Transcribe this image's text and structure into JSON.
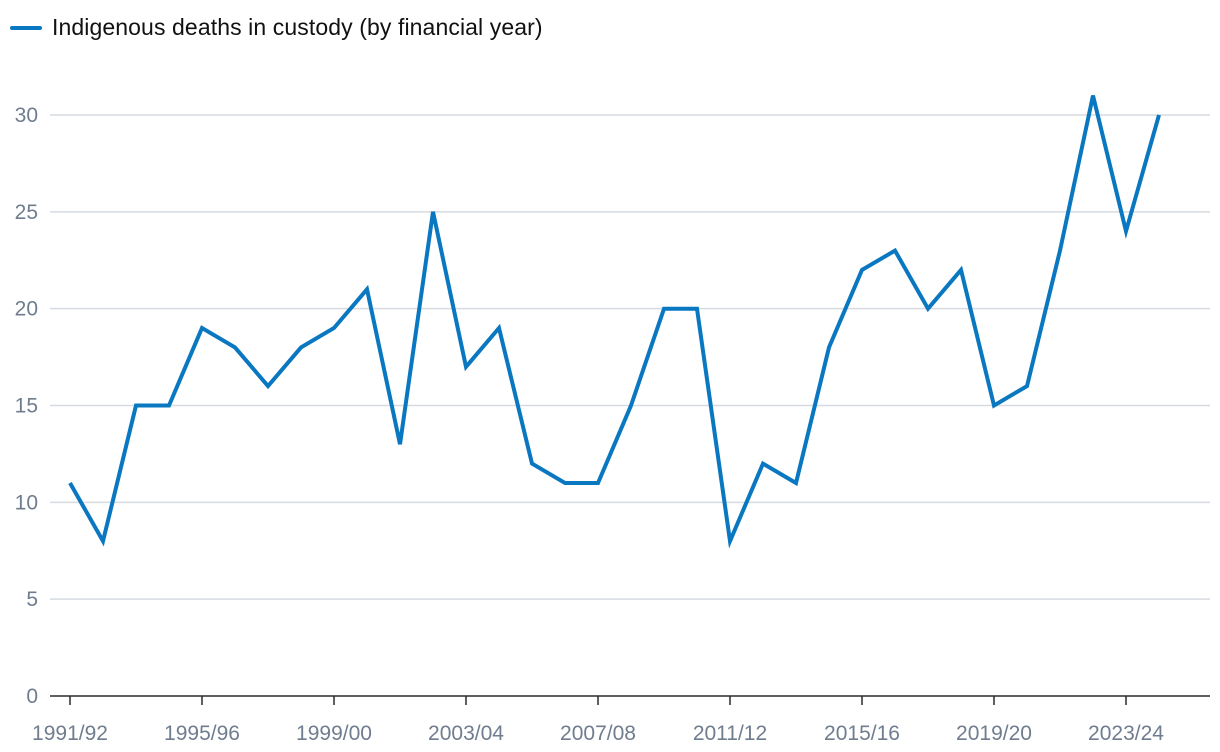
{
  "chart_data": {
    "type": "line",
    "title": "",
    "xlabel": "",
    "ylabel": "",
    "ylim": [
      0,
      32
    ],
    "grid": true,
    "legend": "top-left",
    "colors": {
      "line": "#0a77c1",
      "grid": "#d6dbe1",
      "axis": "#2b2b2b",
      "tick_text": "#6f7d8f"
    },
    "y_ticks": [
      0,
      5,
      10,
      15,
      20,
      25,
      30
    ],
    "x_tick_labels": [
      "1991/92",
      "1995/96",
      "1999/00",
      "2003/04",
      "2007/08",
      "2011/12",
      "2015/16",
      "2019/20",
      "2023/24"
    ],
    "x": [
      "1991/92",
      "1992/93",
      "1993/94",
      "1994/95",
      "1995/96",
      "1996/97",
      "1997/98",
      "1998/99",
      "1999/00",
      "2000/01",
      "2001/02",
      "2002/03",
      "2003/04",
      "2004/05",
      "2005/06",
      "2006/07",
      "2007/08",
      "2008/09",
      "2009/10",
      "2010/11",
      "2011/12",
      "2012/13",
      "2013/14",
      "2014/15",
      "2015/16",
      "2016/17",
      "2017/18",
      "2018/19",
      "2019/20",
      "2020/21",
      "2021/22",
      "2022/23",
      "2023/24",
      "2024/25"
    ],
    "series": [
      {
        "name": "Indigenous deaths in custody (by financial year)",
        "values": [
          11,
          8,
          15,
          15,
          19,
          18,
          16,
          18,
          19,
          21,
          13,
          25,
          17,
          19,
          12,
          11,
          11,
          15,
          20,
          20,
          8,
          12,
          11,
          18,
          22,
          23,
          20,
          22,
          15,
          16,
          23,
          31,
          24,
          30
        ]
      }
    ]
  }
}
